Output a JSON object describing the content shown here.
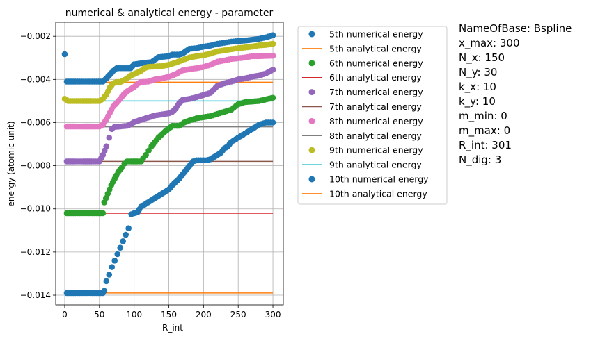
{
  "chart_data": {
    "type": "scatter",
    "title": "numerical & analytical energy - parameter",
    "xlabel": "R_int",
    "ylabel": "energy (atomic unit)",
    "xlim": [
      -13,
      315
    ],
    "ylim": [
      -0.01445,
      -0.00135
    ],
    "xticks": [
      0,
      50,
      100,
      150,
      200,
      250,
      300
    ],
    "yticks": [
      -0.014,
      -0.012,
      -0.01,
      -0.008,
      -0.006,
      -0.004,
      -0.002
    ],
    "grid": true,
    "legend_position": "outside-right",
    "series": [
      {
        "name": "5th numerical energy",
        "kind": "scatter",
        "color": "#1f77b4",
        "points": [
          [
            0,
            -0.00283
          ],
          [
            3,
            -0.0041
          ],
          [
            6,
            -0.0041
          ],
          [
            55,
            -0.0041
          ],
          [
            60,
            -0.00395
          ],
          [
            65,
            -0.00378
          ],
          [
            70,
            -0.0036
          ],
          [
            75,
            -0.00348
          ],
          [
            95,
            -0.00348
          ],
          [
            100,
            -0.0033
          ],
          [
            110,
            -0.00325
          ],
          [
            125,
            -0.0032
          ],
          [
            135,
            -0.00297
          ],
          [
            150,
            -0.00292
          ],
          [
            155,
            -0.00285
          ],
          [
            165,
            -0.00285
          ],
          [
            170,
            -0.0028
          ],
          [
            175,
            -0.00268
          ],
          [
            180,
            -0.00258
          ],
          [
            190,
            -0.00255
          ],
          [
            200,
            -0.00248
          ],
          [
            210,
            -0.00243
          ],
          [
            220,
            -0.00235
          ],
          [
            230,
            -0.0023
          ],
          [
            240,
            -0.00225
          ],
          [
            250,
            -0.00222
          ],
          [
            265,
            -0.00218
          ],
          [
            280,
            -0.00212
          ],
          [
            290,
            -0.00205
          ],
          [
            300,
            -0.00195
          ]
        ]
      },
      {
        "name": "5th analytical energy",
        "kind": "line",
        "color": "#ff7f0e",
        "y": -0.00413
      },
      {
        "name": "6th numerical energy",
        "kind": "scatter",
        "color": "#2ca02c",
        "points": [
          [
            3,
            -0.0102
          ],
          [
            55,
            -0.0102
          ],
          [
            57,
            -0.0097
          ],
          [
            62,
            -0.0093
          ],
          [
            67,
            -0.0089
          ],
          [
            72,
            -0.0086
          ],
          [
            77,
            -0.0083
          ],
          [
            82,
            -0.0081
          ],
          [
            86,
            -0.0079
          ],
          [
            90,
            -0.0078
          ],
          [
            110,
            -0.0078
          ],
          [
            113,
            -0.00765
          ],
          [
            117,
            -0.0075
          ],
          [
            121,
            -0.0073
          ],
          [
            125,
            -0.0071
          ],
          [
            130,
            -0.0069
          ],
          [
            135,
            -0.0067
          ],
          [
            140,
            -0.00655
          ],
          [
            145,
            -0.0064
          ],
          [
            150,
            -0.00628
          ],
          [
            155,
            -0.00615
          ],
          [
            165,
            -0.00615
          ],
          [
            172,
            -0.006
          ],
          [
            180,
            -0.0059
          ],
          [
            190,
            -0.0058
          ],
          [
            200,
            -0.00575
          ],
          [
            210,
            -0.0057
          ],
          [
            220,
            -0.0056
          ],
          [
            230,
            -0.0055
          ],
          [
            240,
            -0.0054
          ],
          [
            250,
            -0.00515
          ],
          [
            260,
            -0.00505
          ],
          [
            280,
            -0.005
          ],
          [
            300,
            -0.00485
          ]
        ]
      },
      {
        "name": "6th analytical energy",
        "kind": "line",
        "color": "#d62728",
        "y": -0.0102
      },
      {
        "name": "7th numerical energy",
        "kind": "scatter",
        "color": "#9467bd",
        "points": [
          [
            3,
            -0.0078
          ],
          [
            50,
            -0.0078
          ],
          [
            55,
            -0.0075
          ],
          [
            60,
            -0.0071
          ],
          [
            64,
            -0.0067
          ],
          [
            68,
            -0.0063
          ],
          [
            72,
            -0.0062
          ],
          [
            80,
            -0.00618
          ],
          [
            90,
            -0.00615
          ],
          [
            95,
            -0.00608
          ],
          [
            100,
            -0.00598
          ],
          [
            110,
            -0.00587
          ],
          [
            120,
            -0.00577
          ],
          [
            130,
            -0.00567
          ],
          [
            140,
            -0.00562
          ],
          [
            150,
            -0.00557
          ],
          [
            155,
            -0.0055
          ],
          [
            160,
            -0.00535
          ],
          [
            165,
            -0.0051
          ],
          [
            170,
            -0.00495
          ],
          [
            180,
            -0.0049
          ],
          [
            190,
            -0.00482
          ],
          [
            200,
            -0.00472
          ],
          [
            210,
            -0.00462
          ],
          [
            215,
            -0.00447
          ],
          [
            220,
            -0.0043
          ],
          [
            230,
            -0.00418
          ],
          [
            240,
            -0.0041
          ],
          [
            250,
            -0.004
          ],
          [
            260,
            -0.00395
          ],
          [
            270,
            -0.00388
          ],
          [
            280,
            -0.00382
          ],
          [
            290,
            -0.00372
          ],
          [
            300,
            -0.00355
          ]
        ]
      },
      {
        "name": "7th analytical energy",
        "kind": "line",
        "color": "#8c564b",
        "y": -0.0078
      },
      {
        "name": "8th numerical energy",
        "kind": "scatter",
        "color": "#e377c2",
        "points": [
          [
            3,
            -0.00618
          ],
          [
            50,
            -0.00618
          ],
          [
            55,
            -0.0061
          ],
          [
            60,
            -0.00585
          ],
          [
            65,
            -0.00555
          ],
          [
            70,
            -0.00525
          ],
          [
            75,
            -0.00508
          ],
          [
            80,
            -0.0049
          ],
          [
            85,
            -0.0047
          ],
          [
            90,
            -0.00455
          ],
          [
            95,
            -0.00445
          ],
          [
            100,
            -0.00435
          ],
          [
            105,
            -0.0042
          ],
          [
            110,
            -0.00412
          ],
          [
            120,
            -0.0041
          ],
          [
            130,
            -0.004
          ],
          [
            140,
            -0.00395
          ],
          [
            150,
            -0.00388
          ],
          [
            160,
            -0.00375
          ],
          [
            170,
            -0.00358
          ],
          [
            180,
            -0.00352
          ],
          [
            190,
            -0.00348
          ],
          [
            200,
            -0.00342
          ],
          [
            210,
            -0.00332
          ],
          [
            220,
            -0.00318
          ],
          [
            230,
            -0.00312
          ],
          [
            240,
            -0.00305
          ],
          [
            250,
            -0.00302
          ],
          [
            260,
            -0.00298
          ],
          [
            270,
            -0.00292
          ],
          [
            280,
            -0.00292
          ],
          [
            300,
            -0.0029
          ]
        ]
      },
      {
        "name": "8th analytical energy",
        "kind": "line",
        "color": "#7f7f7f",
        "y": -0.0062
      },
      {
        "name": "9th numerical energy",
        "kind": "scatter",
        "color": "#bcbd22",
        "points": [
          [
            0,
            -0.0049
          ],
          [
            5,
            -0.005
          ],
          [
            50,
            -0.005
          ],
          [
            55,
            -0.0049
          ],
          [
            60,
            -0.0047
          ],
          [
            65,
            -0.00438
          ],
          [
            70,
            -0.00418
          ],
          [
            75,
            -0.00412
          ],
          [
            80,
            -0.00412
          ],
          [
            85,
            -0.00405
          ],
          [
            90,
            -0.00395
          ],
          [
            95,
            -0.00382
          ],
          [
            100,
            -0.00375
          ],
          [
            105,
            -0.00368
          ],
          [
            110,
            -0.0036
          ],
          [
            115,
            -0.00348
          ],
          [
            120,
            -0.00342
          ],
          [
            130,
            -0.0034
          ],
          [
            140,
            -0.00338
          ],
          [
            150,
            -0.00332
          ],
          [
            160,
            -0.00322
          ],
          [
            170,
            -0.0031
          ],
          [
            180,
            -0.00298
          ],
          [
            190,
            -0.00292
          ],
          [
            200,
            -0.00288
          ],
          [
            210,
            -0.0028
          ],
          [
            220,
            -0.0027
          ],
          [
            230,
            -0.00265
          ],
          [
            240,
            -0.0026
          ],
          [
            250,
            -0.00255
          ],
          [
            260,
            -0.00252
          ],
          [
            270,
            -0.00248
          ],
          [
            280,
            -0.00242
          ],
          [
            290,
            -0.0024
          ],
          [
            300,
            -0.00235
          ]
        ]
      },
      {
        "name": "9th analytical energy",
        "kind": "line",
        "color": "#17becf",
        "y": -0.005
      },
      {
        "name": "10th numerical energy",
        "kind": "scatter",
        "color": "#1f77b4",
        "points": [
          [
            3,
            -0.0139
          ],
          [
            55,
            -0.0139
          ],
          [
            57,
            -0.0138
          ],
          [
            60,
            -0.01335
          ],
          [
            64,
            -0.01305
          ],
          [
            68,
            -0.0127
          ],
          [
            72,
            -0.0124
          ],
          [
            76,
            -0.0121
          ],
          [
            80,
            -0.0118
          ],
          [
            84,
            -0.0115
          ],
          [
            88,
            -0.0112
          ],
          [
            92,
            -0.0109
          ],
          [
            96,
            -0.01025
          ],
          [
            100,
            -0.0102
          ],
          [
            105,
            -0.01015
          ],
          [
            110,
            -0.0099
          ],
          [
            115,
            -0.0098
          ],
          [
            120,
            -0.0097
          ],
          [
            125,
            -0.0096
          ],
          [
            130,
            -0.0095
          ],
          [
            135,
            -0.0094
          ],
          [
            140,
            -0.0093
          ],
          [
            145,
            -0.0092
          ],
          [
            150,
            -0.0091
          ],
          [
            155,
            -0.0089
          ],
          [
            160,
            -0.00875
          ],
          [
            165,
            -0.0086
          ],
          [
            170,
            -0.0084
          ],
          [
            175,
            -0.0082
          ],
          [
            180,
            -0.008
          ],
          [
            185,
            -0.0078
          ],
          [
            190,
            -0.00775
          ],
          [
            205,
            -0.00775
          ],
          [
            210,
            -0.0077
          ],
          [
            215,
            -0.0076
          ],
          [
            220,
            -0.0075
          ],
          [
            225,
            -0.0074
          ],
          [
            230,
            -0.0072
          ],
          [
            235,
            -0.0071
          ],
          [
            240,
            -0.0069
          ],
          [
            250,
            -0.0067
          ],
          [
            260,
            -0.0065
          ],
          [
            270,
            -0.0063
          ],
          [
            280,
            -0.0061
          ],
          [
            290,
            -0.006
          ],
          [
            300,
            -0.006
          ]
        ]
      },
      {
        "name": "10th analytical energy",
        "kind": "line",
        "color": "#ff7f0e",
        "y": -0.0139
      }
    ]
  },
  "params": [
    "NameOfBase: Bspline",
    "x_max: 300",
    "N_x: 150",
    "N_y: 30",
    "k_x: 10",
    "k_y: 10",
    "m_min: 0",
    "m_max: 0",
    "R_int: 301",
    "N_dig: 3"
  ]
}
